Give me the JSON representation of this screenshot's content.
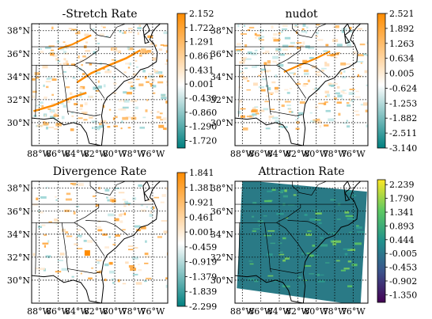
{
  "chart_data": [
    {
      "type": "heatmap",
      "title": "-Stretch Rate",
      "colormap": [
        "#008080",
        "#ffffff",
        "#ff8c00"
      ],
      "lat_ticks": [
        "38°N",
        "36°N",
        "34°N",
        "32°N",
        "30°N"
      ],
      "lon_ticks": [
        "88°W",
        "86°W",
        "84°W",
        "82°W",
        "80°W",
        "78°W",
        "76°W"
      ],
      "colorbar_ticks": [
        "2.152",
        "1.722",
        "1.291",
        "0.861",
        "0.431",
        "0.001",
        "-0.430",
        "-0.860",
        "-1.290",
        "-1.720"
      ],
      "colorbar_range": [
        -1.95,
        2.152
      ]
    },
    {
      "type": "heatmap",
      "title": "nudot",
      "colormap": [
        "#008080",
        "#ffffff",
        "#ff8c00"
      ],
      "lat_ticks": [
        "38°N",
        "36°N",
        "34°N",
        "32°N",
        "30°N"
      ],
      "lon_ticks": [
        "88°W",
        "86°W",
        "84°W",
        "82°W",
        "80°W",
        "78°W",
        "76°W"
      ],
      "colorbar_ticks": [
        "2.521",
        "1.892",
        "1.263",
        "0.634",
        "0.005",
        "-0.624",
        "-1.253",
        "-1.882",
        "-2.511",
        "-3.140"
      ],
      "colorbar_range": [
        -3.14,
        2.521
      ]
    },
    {
      "type": "heatmap",
      "title": "Divergence Rate",
      "colormap": [
        "#008080",
        "#ffffff",
        "#ff8c00"
      ],
      "lat_ticks": [
        "38°N",
        "36°N",
        "34°N",
        "32°N",
        "30°N"
      ],
      "lon_ticks": [
        "88°W",
        "86°W",
        "84°W",
        "82°W",
        "80°W",
        "78°W",
        "76°W"
      ],
      "colorbar_ticks": [
        "1.841",
        "1.381",
        "0.921",
        "0.461",
        "0.001",
        "-0.459",
        "-0.919",
        "-1.379",
        "-1.839",
        "-2.299"
      ],
      "colorbar_range": [
        -2.299,
        1.841
      ]
    },
    {
      "type": "heatmap",
      "title": "Attraction Rate",
      "colormap": [
        "#440154",
        "#3b528b",
        "#21918c",
        "#5ec962",
        "#fde725"
      ],
      "lat_ticks": [
        "38°N",
        "36°N",
        "34°N",
        "32°N",
        "30°N"
      ],
      "lon_ticks": [
        "88°W",
        "86°W",
        "84°W",
        "82°W",
        "80°W",
        "78°W",
        "76°W"
      ],
      "colorbar_ticks": [
        "2.239",
        "1.790",
        "1.341",
        "0.893",
        "0.444",
        "-0.005",
        "-0.453",
        "-0.902",
        "-1.350"
      ],
      "colorbar_range": [
        -1.6,
        2.4
      ]
    }
  ]
}
